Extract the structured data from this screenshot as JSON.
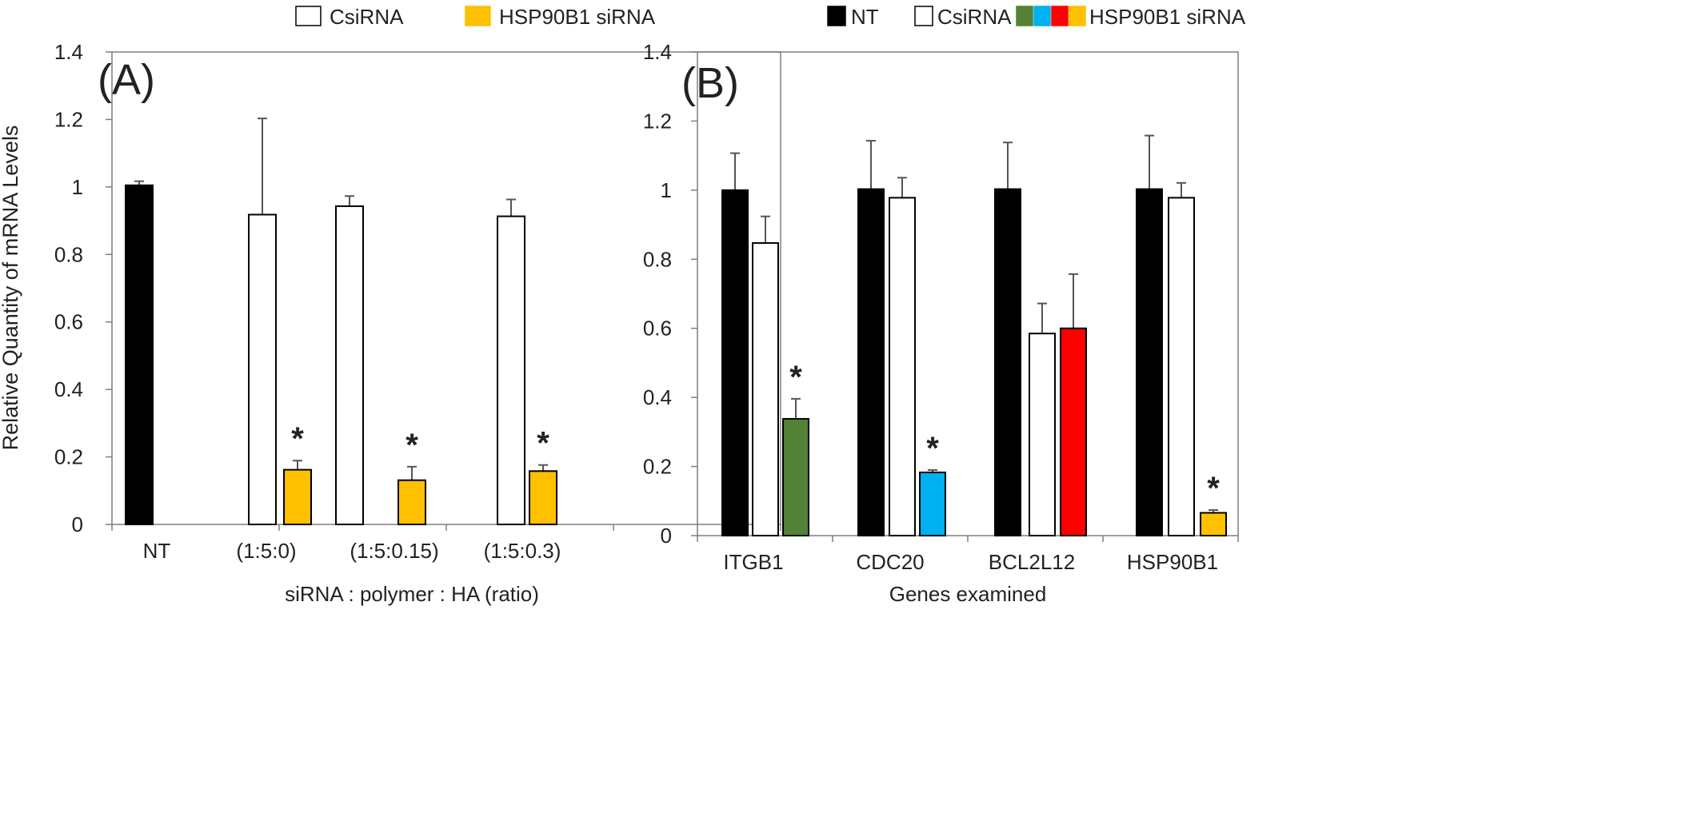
{
  "figure": {
    "colors": {
      "NT": "#000000",
      "CsiRNA": "#ffffff",
      "HSP90B1 siRNA": "#ffc000",
      "green": "#538135",
      "blue": "#00b0f0",
      "red": "#ff0000",
      "axis": "#7f7f7f"
    }
  },
  "chart_data": [
    {
      "type": "bar",
      "panel_label": "(A)",
      "xlabel": "siRNA : polymer : HA (ratio)",
      "ylabel": "Relative Quantity of mRNA Levels",
      "ylim": [
        0,
        1.4
      ],
      "yticks": [
        "0",
        "0.2",
        "0.4",
        "0.6",
        "0.8",
        "1",
        "1.2",
        "1.4"
      ],
      "categories": [
        "NT",
        "(1:5:0)",
        "(1:5:0.15)",
        "(1:5:0.3)"
      ],
      "legend": {
        "position": "top",
        "entries": [
          {
            "label": "CsiRNA",
            "color": "#ffffff"
          },
          {
            "label": "HSP90B1 siRNA",
            "color": "#ffc000"
          }
        ]
      },
      "groups": [
        {
          "category": "NT",
          "bars": [
            {
              "series": "NT",
              "value": 1.005,
              "error": 0.012,
              "color": "#000000",
              "star": false
            }
          ]
        },
        {
          "category": "(1:5:0)",
          "bars": [
            {
              "series": "CsiRNA",
              "value": 0.918,
              "error": 0.285,
              "color": "#ffffff",
              "star": false
            },
            {
              "series": "HSP90B1 siRNA",
              "value": 0.162,
              "error": 0.027,
              "color": "#ffc000",
              "star": true
            }
          ]
        },
        {
          "category": "(1:5:0.15)",
          "bars": [
            {
              "series": "CsiRNA",
              "value": 0.943,
              "error": 0.03,
              "color": "#ffffff",
              "star": false
            },
            {
              "series": "HSP90B1 siRNA",
              "value": 0.131,
              "error": 0.04,
              "color": "#ffc000",
              "star": true
            }
          ]
        },
        {
          "category": "(1:5:0.3)",
          "bars": [
            {
              "series": "CsiRNA",
              "value": 0.913,
              "error": 0.05,
              "color": "#ffffff",
              "star": false
            },
            {
              "series": "HSP90B1 siRNA",
              "value": 0.158,
              "error": 0.018,
              "color": "#ffc000",
              "star": true
            }
          ]
        }
      ],
      "star_symbol": "*"
    },
    {
      "type": "bar",
      "panel_label": "(B)",
      "xlabel": "Genes examined",
      "ylabel": "",
      "ylim": [
        0,
        1.4
      ],
      "yticks": [
        "0",
        "0.2",
        "0.4",
        "0.6",
        "0.8",
        "1",
        "1.2",
        "1.4"
      ],
      "categories": [
        "ITGB1",
        "CDC20",
        "BCL2L12",
        "HSP90B1"
      ],
      "legend": {
        "position": "top",
        "entries": [
          {
            "label": "NT",
            "colors": [
              "#000000"
            ]
          },
          {
            "label": "CsiRNA",
            "colors": [
              "#ffffff"
            ]
          },
          {
            "label": "HSP90B1 siRNA",
            "colors": [
              "#538135",
              "#00b0f0",
              "#ff0000",
              "#ffc000"
            ]
          }
        ]
      },
      "groups": [
        {
          "category": "ITGB1",
          "bars": [
            {
              "series": "NT",
              "value": 1.0,
              "error": 0.107,
              "color": "#000000",
              "star": false
            },
            {
              "series": "CsiRNA",
              "value": 0.847,
              "error": 0.077,
              "color": "#ffffff",
              "star": false
            },
            {
              "series": "HSP90B1 siRNA",
              "value": 0.338,
              "error": 0.058,
              "color": "#538135",
              "star": true
            }
          ]
        },
        {
          "category": "CDC20",
          "bars": [
            {
              "series": "NT",
              "value": 1.003,
              "error": 0.14,
              "color": "#000000",
              "star": false
            },
            {
              "series": "CsiRNA",
              "value": 0.978,
              "error": 0.058,
              "color": "#ffffff",
              "star": false
            },
            {
              "series": "HSP90B1 siRNA",
              "value": 0.183,
              "error": 0.007,
              "color": "#00b0f0",
              "star": true
            }
          ]
        },
        {
          "category": "BCL2L12",
          "bars": [
            {
              "series": "NT",
              "value": 1.003,
              "error": 0.135,
              "color": "#000000",
              "star": false
            },
            {
              "series": "CsiRNA",
              "value": 0.585,
              "error": 0.087,
              "color": "#ffffff",
              "star": false
            },
            {
              "series": "HSP90B1 siRNA",
              "value": 0.6,
              "error": 0.157,
              "color": "#ff0000",
              "star": false
            }
          ]
        },
        {
          "category": "HSP90B1",
          "bars": [
            {
              "series": "NT",
              "value": 1.003,
              "error": 0.155,
              "color": "#000000",
              "star": false
            },
            {
              "series": "CsiRNA",
              "value": 0.978,
              "error": 0.043,
              "color": "#ffffff",
              "star": false
            },
            {
              "series": "HSP90B1 siRNA",
              "value": 0.066,
              "error": 0.008,
              "color": "#ffc000",
              "star": true
            }
          ]
        }
      ],
      "star_symbol": "*"
    }
  ]
}
